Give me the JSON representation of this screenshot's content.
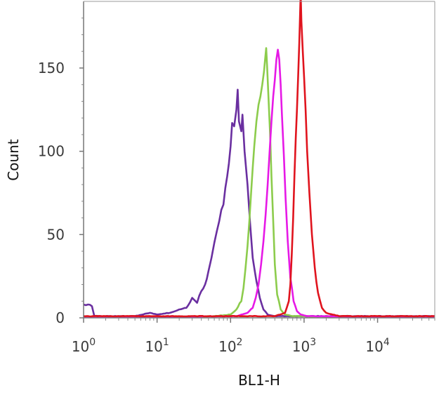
{
  "chart_data": {
    "type": "area",
    "title": "",
    "xlabel": "BL1-H",
    "ylabel": "Count",
    "xscale": "log",
    "xlim": [
      1,
      60000
    ],
    "ylim": [
      0,
      190
    ],
    "grid": false,
    "legend": "none",
    "x_ticks": [
      {
        "value": 1,
        "base": "10",
        "exp": "0"
      },
      {
        "value": 10,
        "base": "10",
        "exp": "1"
      },
      {
        "value": 100,
        "base": "10",
        "exp": "2"
      },
      {
        "value": 1000,
        "base": "10",
        "exp": "3"
      },
      {
        "value": 10000,
        "base": "10",
        "exp": "4"
      }
    ],
    "y_ticks": [
      {
        "value": 0,
        "label": "0"
      },
      {
        "value": 50,
        "label": "50"
      },
      {
        "value": 100,
        "label": "100"
      },
      {
        "value": 150,
        "label": "150"
      }
    ],
    "series": [
      {
        "color": "#6a2fa0",
        "points": [
          [
            1.0,
            8
          ],
          [
            1.15,
            8
          ],
          [
            1.3,
            7
          ],
          [
            1.4,
            1
          ],
          [
            2,
            1
          ],
          [
            3,
            1
          ],
          [
            5,
            1
          ],
          [
            8,
            3
          ],
          [
            10,
            2
          ],
          [
            15,
            3
          ],
          [
            20,
            5
          ],
          [
            25,
            6
          ],
          [
            30,
            12
          ],
          [
            35,
            9
          ],
          [
            40,
            16
          ],
          [
            45,
            20
          ],
          [
            50,
            28
          ],
          [
            55,
            36
          ],
          [
            60,
            45
          ],
          [
            65,
            52
          ],
          [
            70,
            58
          ],
          [
            80,
            68
          ],
          [
            90,
            85
          ],
          [
            100,
            103
          ],
          [
            105,
            117
          ],
          [
            112,
            115
          ],
          [
            120,
            125
          ],
          [
            125,
            137
          ],
          [
            130,
            118
          ],
          [
            140,
            112
          ],
          [
            145,
            122
          ],
          [
            155,
            100
          ],
          [
            170,
            80
          ],
          [
            185,
            56
          ],
          [
            200,
            36
          ],
          [
            225,
            22
          ],
          [
            250,
            12
          ],
          [
            280,
            5
          ],
          [
            320,
            2
          ],
          [
            400,
            1
          ],
          [
            1000,
            1
          ],
          [
            60000,
            1
          ]
        ]
      },
      {
        "color": "#8ccc4c",
        "points": [
          [
            1.0,
            0
          ],
          [
            60,
            1
          ],
          [
            100,
            2
          ],
          [
            120,
            5
          ],
          [
            140,
            10
          ],
          [
            150,
            18
          ],
          [
            160,
            30
          ],
          [
            170,
            43
          ],
          [
            180,
            58
          ],
          [
            190,
            75
          ],
          [
            200,
            90
          ],
          [
            210,
            103
          ],
          [
            225,
            118
          ],
          [
            240,
            128
          ],
          [
            255,
            133
          ],
          [
            270,
            140
          ],
          [
            285,
            148
          ],
          [
            295,
            155
          ],
          [
            305,
            162
          ],
          [
            315,
            150
          ],
          [
            330,
            130
          ],
          [
            345,
            110
          ],
          [
            360,
            85
          ],
          [
            380,
            58
          ],
          [
            400,
            32
          ],
          [
            430,
            14
          ],
          [
            480,
            5
          ],
          [
            550,
            2
          ],
          [
            700,
            1
          ],
          [
            60000,
            0
          ]
        ]
      },
      {
        "color": "#e619e6",
        "points": [
          [
            1.0,
            0
          ],
          [
            120,
            1
          ],
          [
            170,
            3
          ],
          [
            200,
            6
          ],
          [
            220,
            12
          ],
          [
            240,
            20
          ],
          [
            260,
            32
          ],
          [
            280,
            46
          ],
          [
            300,
            62
          ],
          [
            320,
            80
          ],
          [
            340,
            100
          ],
          [
            360,
            118
          ],
          [
            380,
            133
          ],
          [
            400,
            143
          ],
          [
            420,
            155
          ],
          [
            440,
            161
          ],
          [
            460,
            155
          ],
          [
            480,
            140
          ],
          [
            500,
            122
          ],
          [
            530,
            98
          ],
          [
            560,
            72
          ],
          [
            600,
            46
          ],
          [
            650,
            24
          ],
          [
            720,
            10
          ],
          [
            800,
            4
          ],
          [
            900,
            2
          ],
          [
            1100,
            1
          ],
          [
            60000,
            0
          ]
        ]
      },
      {
        "color": "#e0141e",
        "points": [
          [
            1.0,
            1
          ],
          [
            10,
            1
          ],
          [
            100,
            1
          ],
          [
            400,
            1
          ],
          [
            550,
            3
          ],
          [
            620,
            10
          ],
          [
            650,
            20
          ],
          [
            680,
            38
          ],
          [
            710,
            60
          ],
          [
            740,
            85
          ],
          [
            770,
            108
          ],
          [
            800,
            125
          ],
          [
            830,
            145
          ],
          [
            860,
            165
          ],
          [
            880,
            180
          ],
          [
            900,
            195
          ],
          [
            920,
            178
          ],
          [
            960,
            160
          ],
          [
            1000,
            145
          ],
          [
            1050,
            125
          ],
          [
            1100,
            100
          ],
          [
            1180,
            75
          ],
          [
            1280,
            50
          ],
          [
            1400,
            30
          ],
          [
            1550,
            15
          ],
          [
            1750,
            6
          ],
          [
            2000,
            3
          ],
          [
            3000,
            1
          ],
          [
            10000,
            1
          ],
          [
            60000,
            1
          ]
        ]
      }
    ]
  }
}
